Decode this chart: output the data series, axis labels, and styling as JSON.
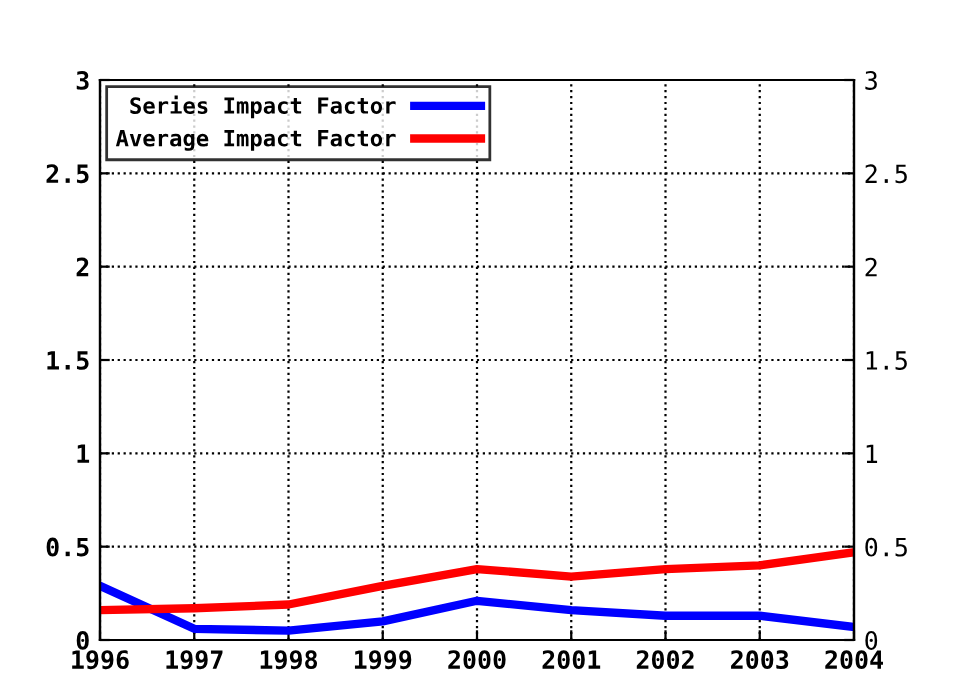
{
  "chart_data": {
    "type": "line",
    "x": [
      1996,
      1997,
      1998,
      1999,
      2000,
      2001,
      2002,
      2003,
      2004
    ],
    "series": [
      {
        "name": "Series Impact Factor",
        "color": "#0000ff",
        "values": [
          0.29,
          0.06,
          0.05,
          0.1,
          0.21,
          0.16,
          0.13,
          0.13,
          0.07
        ]
      },
      {
        "name": "Average Impact Factor",
        "color": "#ff0000",
        "values": [
          0.16,
          0.17,
          0.19,
          0.29,
          0.38,
          0.34,
          0.38,
          0.4,
          0.47
        ]
      }
    ],
    "xlim": [
      1996,
      2004
    ],
    "xticks": [
      1996,
      1997,
      1998,
      1999,
      2000,
      2001,
      2002,
      2003,
      2004
    ],
    "ylim": [
      0,
      3
    ],
    "yticks": [
      0,
      0.5,
      1,
      1.5,
      2,
      2.5,
      3
    ],
    "y2lim": [
      0,
      3
    ],
    "y2ticks": [
      0,
      0.5,
      1,
      1.5,
      2,
      2.5,
      3
    ],
    "grid": true,
    "legend": "top left",
    "marker": "none",
    "line_style": "solid"
  }
}
